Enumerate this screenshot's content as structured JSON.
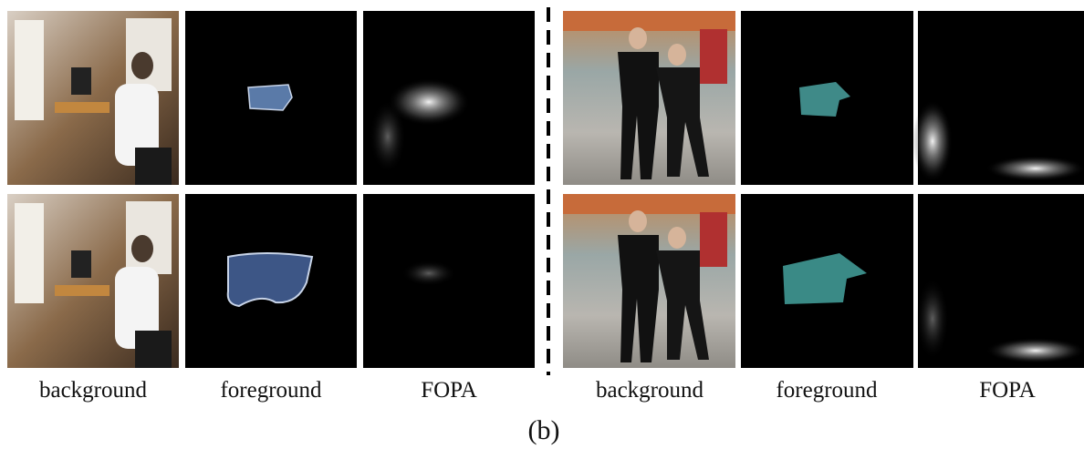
{
  "panels": [
    {
      "labels": [
        "background",
        "foreground",
        "FOPA"
      ]
    },
    {
      "labels": [
        "background",
        "foreground",
        "FOPA"
      ]
    }
  ],
  "caption": "(b)"
}
